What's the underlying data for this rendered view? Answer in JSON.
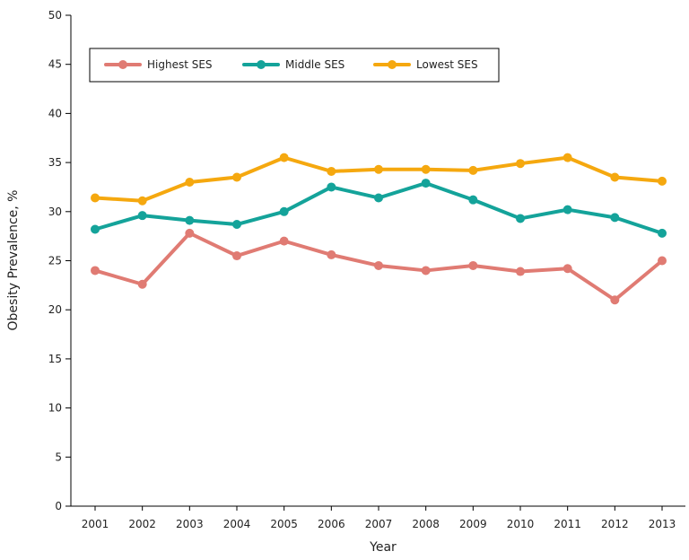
{
  "chart_data": {
    "type": "line",
    "title": "",
    "xlabel": "Year",
    "ylabel": "Obesity Prevalence, %",
    "ylim": [
      0,
      50
    ],
    "yticks": [
      0,
      5,
      10,
      15,
      20,
      25,
      30,
      35,
      40,
      45,
      50
    ],
    "x": [
      "2001",
      "2002",
      "2003",
      "2004",
      "2005",
      "2006",
      "2007",
      "2008",
      "2009",
      "2010",
      "2011",
      "2012",
      "2013"
    ],
    "grid": false,
    "legend_position": "top-left",
    "series": [
      {
        "name": "Highest SES",
        "color": "#e07b73",
        "values": [
          24.0,
          22.6,
          27.8,
          25.5,
          27.0,
          25.6,
          24.5,
          24.0,
          24.5,
          23.9,
          24.2,
          21.0,
          25.0
        ]
      },
      {
        "name": "Middle SES",
        "color": "#14a39a",
        "values": [
          28.2,
          29.6,
          29.1,
          28.7,
          30.0,
          32.5,
          31.4,
          32.9,
          31.2,
          29.3,
          30.2,
          29.4,
          27.8
        ]
      },
      {
        "name": "Lowest SES",
        "color": "#f5a80f",
        "values": [
          31.4,
          31.1,
          33.0,
          33.5,
          35.5,
          34.1,
          34.3,
          34.3,
          34.2,
          34.9,
          35.5,
          33.5,
          33.1
        ]
      }
    ]
  }
}
